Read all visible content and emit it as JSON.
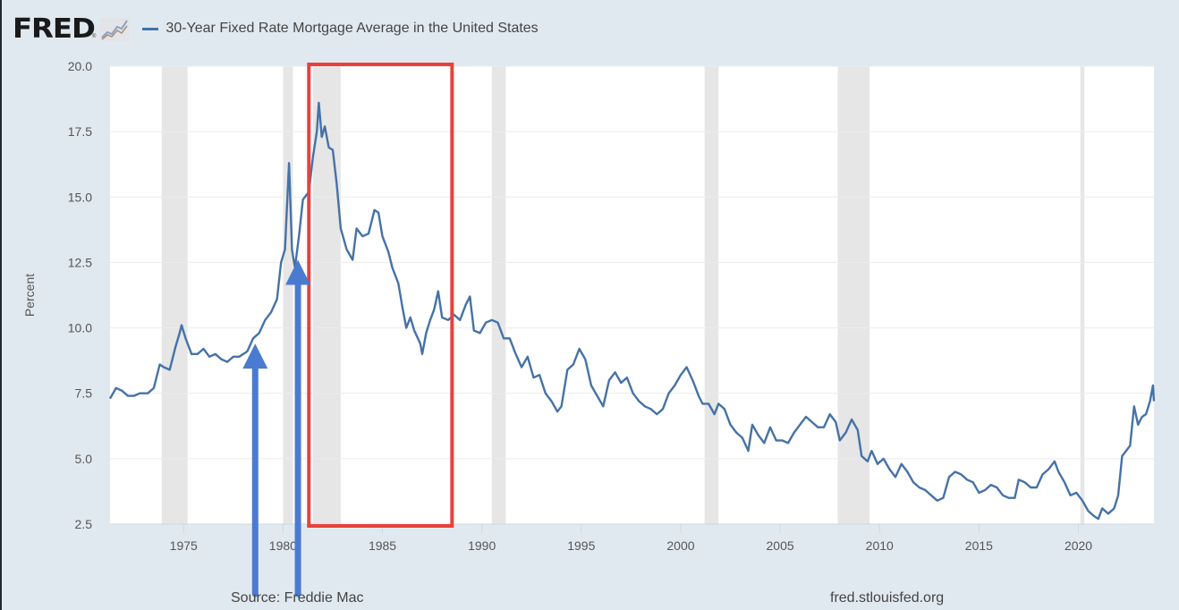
{
  "header": {
    "logo_text": "FRED",
    "logo_reg": "®",
    "logo_icon": "line-chart-icon",
    "legend_label": "30-Year Fixed Rate Mortgage Average in the United States",
    "legend_color": "#4572a7"
  },
  "footer": {
    "source": "Source: Freddie Mac",
    "site": "fred.stlouisfed.org"
  },
  "colors": {
    "background": "#e1e9f0",
    "plot_background": "#ffffff",
    "recession_band": "#e6e6e6",
    "series_line": "#4572a7",
    "annotation_box": "#e8413c",
    "annotation_arrow": "#4a7bd0"
  },
  "chart_data": {
    "type": "line",
    "title": "30-Year Fixed Rate Mortgage Average in the United States",
    "xlabel": "",
    "ylabel": "Percent",
    "xlim": [
      1971.3,
      2023.8
    ],
    "ylim": [
      2.5,
      20.0
    ],
    "grid": true,
    "legend": "top-left",
    "x_ticks": [
      1975,
      1980,
      1985,
      1990,
      1995,
      2000,
      2005,
      2010,
      2015,
      2020
    ],
    "y_ticks": [
      2.5,
      5.0,
      7.5,
      10.0,
      12.5,
      15.0,
      17.5,
      20.0
    ],
    "y_tick_labels": [
      "2.5",
      "5.0",
      "7.5",
      "10.0",
      "12.5",
      "15.0",
      "17.5",
      "20.0"
    ],
    "recessions": [
      [
        1973.9,
        1975.2
      ],
      [
        1980.0,
        1980.5
      ],
      [
        1981.5,
        1982.9
      ],
      [
        1990.5,
        1991.2
      ],
      [
        2001.2,
        2001.9
      ],
      [
        2007.9,
        2009.5
      ],
      [
        2020.1,
        2020.3
      ]
    ],
    "series": [
      {
        "name": "30-Year Fixed Rate Mortgage Average in the United States",
        "points": [
          [
            1971.3,
            7.3
          ],
          [
            1971.6,
            7.7
          ],
          [
            1971.9,
            7.6
          ],
          [
            1972.2,
            7.4
          ],
          [
            1972.5,
            7.4
          ],
          [
            1972.8,
            7.5
          ],
          [
            1973.2,
            7.5
          ],
          [
            1973.5,
            7.7
          ],
          [
            1973.8,
            8.6
          ],
          [
            1974.0,
            8.5
          ],
          [
            1974.3,
            8.4
          ],
          [
            1974.6,
            9.3
          ],
          [
            1974.8,
            9.8
          ],
          [
            1974.9,
            10.1
          ],
          [
            1975.1,
            9.6
          ],
          [
            1975.4,
            9.0
          ],
          [
            1975.7,
            9.0
          ],
          [
            1976.0,
            9.2
          ],
          [
            1976.3,
            8.9
          ],
          [
            1976.6,
            9.0
          ],
          [
            1976.9,
            8.8
          ],
          [
            1977.2,
            8.7
          ],
          [
            1977.5,
            8.9
          ],
          [
            1977.8,
            8.9
          ],
          [
            1978.2,
            9.1
          ],
          [
            1978.5,
            9.6
          ],
          [
            1978.8,
            9.8
          ],
          [
            1979.1,
            10.3
          ],
          [
            1979.4,
            10.6
          ],
          [
            1979.7,
            11.1
          ],
          [
            1979.9,
            12.5
          ],
          [
            1980.1,
            13.0
          ],
          [
            1980.3,
            16.3
          ],
          [
            1980.45,
            13.0
          ],
          [
            1980.6,
            12.3
          ],
          [
            1980.8,
            13.5
          ],
          [
            1981.0,
            14.9
          ],
          [
            1981.3,
            15.2
          ],
          [
            1981.5,
            16.5
          ],
          [
            1981.7,
            17.5
          ],
          [
            1981.8,
            18.6
          ],
          [
            1981.95,
            17.3
          ],
          [
            1982.1,
            17.7
          ],
          [
            1982.3,
            16.9
          ],
          [
            1982.5,
            16.8
          ],
          [
            1982.7,
            15.5
          ],
          [
            1982.9,
            13.8
          ],
          [
            1983.2,
            13.0
          ],
          [
            1983.5,
            12.6
          ],
          [
            1983.7,
            13.8
          ],
          [
            1984.0,
            13.5
          ],
          [
            1984.3,
            13.6
          ],
          [
            1984.6,
            14.5
          ],
          [
            1984.8,
            14.4
          ],
          [
            1985.0,
            13.5
          ],
          [
            1985.3,
            12.9
          ],
          [
            1985.5,
            12.3
          ],
          [
            1985.8,
            11.7
          ],
          [
            1986.0,
            10.8
          ],
          [
            1986.2,
            10.0
          ],
          [
            1986.4,
            10.4
          ],
          [
            1986.6,
            9.9
          ],
          [
            1986.9,
            9.4
          ],
          [
            1987.0,
            9.0
          ],
          [
            1987.2,
            9.8
          ],
          [
            1987.4,
            10.3
          ],
          [
            1987.6,
            10.7
          ],
          [
            1987.8,
            11.4
          ],
          [
            1988.0,
            10.4
          ],
          [
            1988.3,
            10.3
          ],
          [
            1988.6,
            10.5
          ],
          [
            1988.9,
            10.3
          ],
          [
            1989.2,
            10.9
          ],
          [
            1989.4,
            11.2
          ],
          [
            1989.6,
            9.9
          ],
          [
            1989.9,
            9.8
          ],
          [
            1990.2,
            10.2
          ],
          [
            1990.5,
            10.3
          ],
          [
            1990.8,
            10.2
          ],
          [
            1991.1,
            9.6
          ],
          [
            1991.4,
            9.6
          ],
          [
            1991.7,
            9.0
          ],
          [
            1992.0,
            8.5
          ],
          [
            1992.3,
            8.9
          ],
          [
            1992.6,
            8.1
          ],
          [
            1992.9,
            8.2
          ],
          [
            1993.2,
            7.5
          ],
          [
            1993.5,
            7.2
          ],
          [
            1993.8,
            6.8
          ],
          [
            1994.0,
            7.0
          ],
          [
            1994.3,
            8.4
          ],
          [
            1994.6,
            8.6
          ],
          [
            1994.9,
            9.2
          ],
          [
            1995.2,
            8.8
          ],
          [
            1995.5,
            7.8
          ],
          [
            1995.8,
            7.4
          ],
          [
            1996.1,
            7.0
          ],
          [
            1996.4,
            8.0
          ],
          [
            1996.7,
            8.3
          ],
          [
            1997.0,
            7.9
          ],
          [
            1997.3,
            8.1
          ],
          [
            1997.6,
            7.5
          ],
          [
            1997.9,
            7.2
          ],
          [
            1998.2,
            7.0
          ],
          [
            1998.5,
            6.9
          ],
          [
            1998.8,
            6.7
          ],
          [
            1999.1,
            6.9
          ],
          [
            1999.4,
            7.5
          ],
          [
            1999.7,
            7.8
          ],
          [
            2000.0,
            8.2
          ],
          [
            2000.3,
            8.5
          ],
          [
            2000.6,
            8.0
          ],
          [
            2000.9,
            7.4
          ],
          [
            2001.1,
            7.1
          ],
          [
            2001.4,
            7.1
          ],
          [
            2001.7,
            6.7
          ],
          [
            2001.9,
            7.1
          ],
          [
            2002.2,
            6.9
          ],
          [
            2002.5,
            6.3
          ],
          [
            2002.8,
            6.0
          ],
          [
            2003.1,
            5.8
          ],
          [
            2003.4,
            5.3
          ],
          [
            2003.6,
            6.3
          ],
          [
            2003.9,
            5.9
          ],
          [
            2004.2,
            5.6
          ],
          [
            2004.5,
            6.2
          ],
          [
            2004.8,
            5.7
          ],
          [
            2005.1,
            5.7
          ],
          [
            2005.4,
            5.6
          ],
          [
            2005.7,
            6.0
          ],
          [
            2006.0,
            6.3
          ],
          [
            2006.3,
            6.6
          ],
          [
            2006.6,
            6.4
          ],
          [
            2006.9,
            6.2
          ],
          [
            2007.2,
            6.2
          ],
          [
            2007.5,
            6.7
          ],
          [
            2007.8,
            6.4
          ],
          [
            2008.0,
            5.7
          ],
          [
            2008.3,
            6.0
          ],
          [
            2008.6,
            6.5
          ],
          [
            2008.9,
            6.1
          ],
          [
            2009.1,
            5.1
          ],
          [
            2009.4,
            4.9
          ],
          [
            2009.6,
            5.3
          ],
          [
            2009.9,
            4.8
          ],
          [
            2010.2,
            5.0
          ],
          [
            2010.5,
            4.6
          ],
          [
            2010.8,
            4.3
          ],
          [
            2011.1,
            4.8
          ],
          [
            2011.4,
            4.5
          ],
          [
            2011.7,
            4.1
          ],
          [
            2012.0,
            3.9
          ],
          [
            2012.3,
            3.8
          ],
          [
            2012.6,
            3.6
          ],
          [
            2012.9,
            3.4
          ],
          [
            2013.2,
            3.5
          ],
          [
            2013.5,
            4.3
          ],
          [
            2013.8,
            4.5
          ],
          [
            2014.1,
            4.4
          ],
          [
            2014.4,
            4.2
          ],
          [
            2014.7,
            4.1
          ],
          [
            2015.0,
            3.7
          ],
          [
            2015.3,
            3.8
          ],
          [
            2015.6,
            4.0
          ],
          [
            2015.9,
            3.9
          ],
          [
            2016.2,
            3.6
          ],
          [
            2016.5,
            3.5
          ],
          [
            2016.8,
            3.5
          ],
          [
            2017.0,
            4.2
          ],
          [
            2017.3,
            4.1
          ],
          [
            2017.6,
            3.9
          ],
          [
            2017.9,
            3.9
          ],
          [
            2018.2,
            4.4
          ],
          [
            2018.5,
            4.6
          ],
          [
            2018.8,
            4.9
          ],
          [
            2019.0,
            4.5
          ],
          [
            2019.3,
            4.1
          ],
          [
            2019.6,
            3.6
          ],
          [
            2019.9,
            3.7
          ],
          [
            2020.2,
            3.4
          ],
          [
            2020.5,
            3.0
          ],
          [
            2020.8,
            2.8
          ],
          [
            2021.0,
            2.7
          ],
          [
            2021.2,
            3.1
          ],
          [
            2021.5,
            2.9
          ],
          [
            2021.8,
            3.1
          ],
          [
            2022.0,
            3.6
          ],
          [
            2022.2,
            5.1
          ],
          [
            2022.4,
            5.3
          ],
          [
            2022.6,
            5.5
          ],
          [
            2022.8,
            7.0
          ],
          [
            2023.0,
            6.3
          ],
          [
            2023.2,
            6.6
          ],
          [
            2023.4,
            6.7
          ],
          [
            2023.6,
            7.2
          ],
          [
            2023.75,
            7.8
          ],
          [
            2023.8,
            7.2
          ]
        ]
      }
    ],
    "annotations": [
      {
        "type": "box",
        "label": "highlight-1981-1987",
        "x_range": [
          1981.3,
          1988.5
        ],
        "y_range": [
          2.5,
          20.0
        ]
      },
      {
        "type": "arrow",
        "label": "arrow-1978",
        "x": 1978.6,
        "y_tip": 9.4
      },
      {
        "type": "arrow",
        "label": "arrow-1980",
        "x": 1980.75,
        "y_tip": 12.6
      }
    ]
  }
}
